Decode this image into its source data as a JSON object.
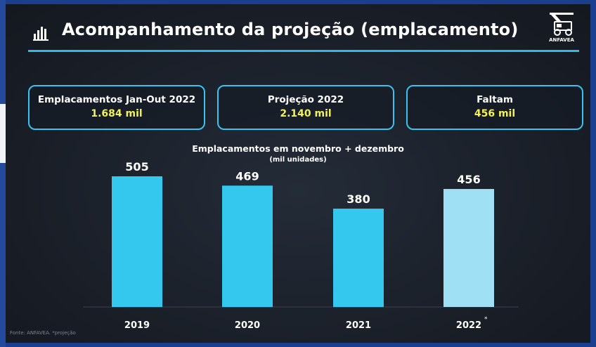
{
  "title": "Acompanhamento da projeção (emplacamento)",
  "logo_text": "ANFAVEA",
  "kpis": [
    {
      "label": "Emplacamentos Jan-Out 2022",
      "value": "1.684 mil"
    },
    {
      "label": "Projeção 2022",
      "value": "2.140 mil"
    },
    {
      "label": "Faltam",
      "value": "456 mil"
    }
  ],
  "footer": "Fonte: ANFAVEA. *projeção",
  "colors": {
    "accent": "#32b8e6",
    "kpi_value": "#f3f25a",
    "bar": "#35c8ee",
    "bar_projection": "#9fe0f4"
  },
  "icons": {
    "title": "bar-chart-icon",
    "logo": "truck-logo-icon"
  },
  "chart_data": {
    "type": "bar",
    "title": "Emplacamentos em novembro + dezembro",
    "subtitle": "(mil unidades)",
    "categories": [
      "2019",
      "2020",
      "2021",
      "2022"
    ],
    "category_marks": [
      "",
      "",
      "",
      "*"
    ],
    "values": [
      505,
      469,
      380,
      456
    ],
    "projection": [
      false,
      false,
      false,
      true
    ],
    "ylim": [
      0,
      600
    ],
    "grid": false,
    "legend": "none"
  }
}
